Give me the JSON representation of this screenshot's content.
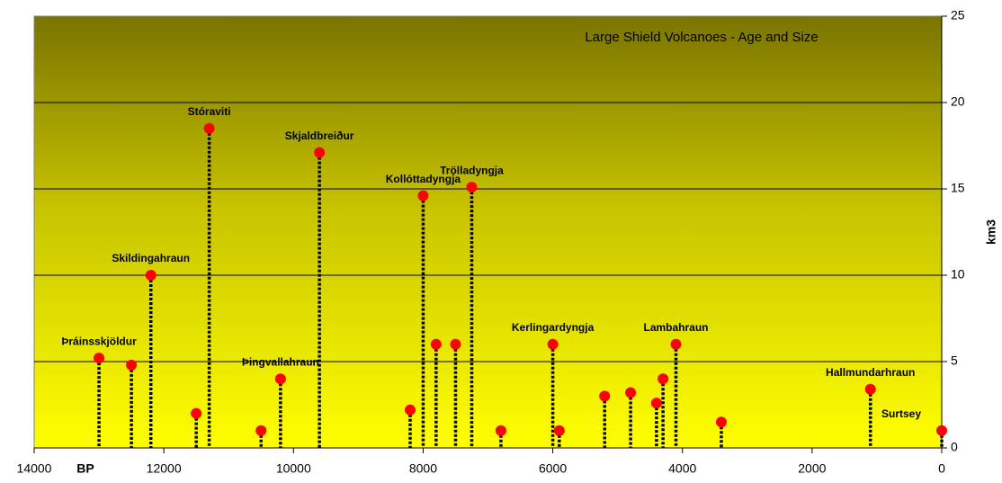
{
  "chart_data": {
    "type": "scatter",
    "title": "Large Shield Volcanoes - Age and Size",
    "x_label": "BP",
    "y_label": "km3",
    "x": [
      13000,
      12500,
      12200,
      11500,
      11300,
      10500,
      10200,
      9600,
      8200,
      8000,
      7800,
      7500,
      7250,
      6800,
      6000,
      5900,
      5200,
      4800,
      4400,
      4300,
      4100,
      3400,
      1100,
      0
    ],
    "values": [
      5.2,
      4.8,
      10,
      2.0,
      18.5,
      1.0,
      4.0,
      17.1,
      2.2,
      14.6,
      6.0,
      6.0,
      15.1,
      1.0,
      6.0,
      1.0,
      3.0,
      3.2,
      2.6,
      4.0,
      6.0,
      1.5,
      3.4,
      1.0
    ],
    "labels": [
      "Þráinsskjöldur",
      null,
      "Skildingahraun",
      null,
      "Stóraviti",
      null,
      "Þingvallahraun",
      "Skjaldbreiður",
      null,
      "Kollóttadyngja",
      null,
      null,
      "Trölladyngja",
      null,
      "Kerlingardyngja",
      null,
      null,
      null,
      null,
      null,
      "Lambahraun",
      null,
      "Hallmundarhraun",
      "Surtsey"
    ],
    "color": "#ff0000",
    "xlim": [
      14000,
      0
    ],
    "xticks": [
      14000,
      12000,
      10000,
      8000,
      6000,
      4000,
      2000,
      0
    ],
    "ylim": [
      0,
      25
    ],
    "yticks": [
      0,
      5,
      10,
      15,
      20,
      25
    ],
    "grid": true
  }
}
